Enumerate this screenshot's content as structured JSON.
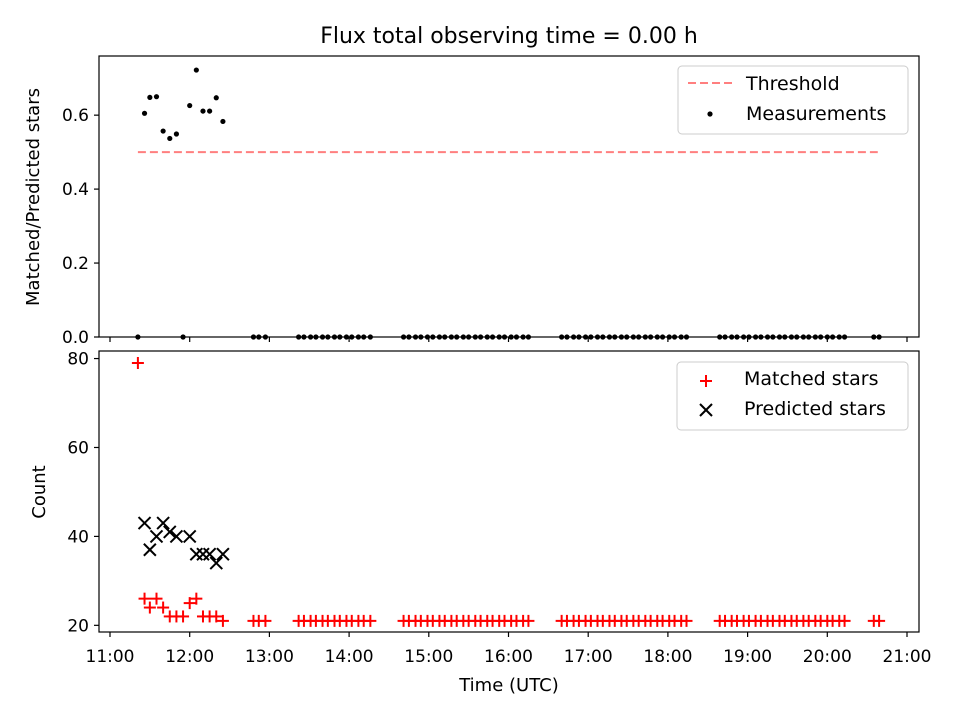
{
  "chart_data": [
    {
      "type": "scatter",
      "title": "Flux total observing time = 0.00 h",
      "xlabel": "",
      "ylabel": "Matched/Predicted stars",
      "xlim": [
        "11:00",
        "21:00"
      ],
      "ylim": [
        0,
        0.76
      ],
      "xticks": [
        "11:00",
        "12:00",
        "13:00",
        "14:00",
        "15:00",
        "16:00",
        "17:00",
        "18:00",
        "19:00",
        "20:00",
        "21:00"
      ],
      "yticks": [
        "0.0",
        "0.2",
        "0.4",
        "0.6"
      ],
      "legend_position": "top-right",
      "threshold": {
        "name": "Threshold",
        "value": 0.5,
        "x_start": "11:21",
        "x_end": "20:38",
        "color": "#ff7f7f",
        "style": "dashed"
      },
      "series": [
        {
          "name": "Measurements",
          "marker": "dot",
          "color": "#000000",
          "x": [
            "11:21",
            "11:26",
            "11:30",
            "11:35",
            "11:40",
            "11:45",
            "11:50",
            "11:55",
            "12:00",
            "12:05",
            "12:10",
            "12:15",
            "12:20",
            "12:25",
            "12:48",
            "12:52",
            "12:57",
            "13:22",
            "13:26",
            "13:31",
            "13:35",
            "13:40",
            "13:44",
            "13:49",
            "13:53",
            "13:58",
            "14:02",
            "14:07",
            "14:11",
            "14:16",
            "14:41",
            "14:45",
            "14:50",
            "14:54",
            "14:59",
            "15:03",
            "15:08",
            "15:12",
            "15:17",
            "15:21",
            "15:26",
            "15:30",
            "15:35",
            "15:39",
            "15:44",
            "15:48",
            "15:53",
            "15:57",
            "16:02",
            "16:06",
            "16:11",
            "16:15",
            "16:40",
            "16:44",
            "16:49",
            "16:53",
            "16:58",
            "17:02",
            "17:07",
            "17:11",
            "17:16",
            "17:20",
            "17:25",
            "17:29",
            "17:34",
            "17:38",
            "17:43",
            "17:47",
            "17:52",
            "17:56",
            "18:01",
            "18:05",
            "18:10",
            "18:14",
            "18:39",
            "18:43",
            "18:48",
            "18:52",
            "18:57",
            "19:01",
            "19:06",
            "19:10",
            "19:15",
            "19:19",
            "19:24",
            "19:28",
            "19:33",
            "19:37",
            "19:42",
            "19:46",
            "19:51",
            "19:55",
            "20:00",
            "20:04",
            "20:09",
            "20:13",
            "20:35",
            "20:39"
          ],
          "y": [
            0,
            0.605,
            0.648,
            0.65,
            0.557,
            0.537,
            0.549,
            0,
            0.626,
            0.722,
            0.611,
            0.611,
            0.647,
            0.583,
            0,
            0,
            0,
            0,
            0,
            0,
            0,
            0,
            0,
            0,
            0,
            0,
            0,
            0,
            0,
            0,
            0,
            0,
            0,
            0,
            0,
            0,
            0,
            0,
            0,
            0,
            0,
            0,
            0,
            0,
            0,
            0,
            0,
            0,
            0,
            0,
            0,
            0,
            0,
            0,
            0,
            0,
            0,
            0,
            0,
            0,
            0,
            0,
            0,
            0,
            0,
            0,
            0,
            0,
            0,
            0,
            0,
            0,
            0,
            0,
            0,
            0,
            0,
            0,
            0,
            0,
            0,
            0,
            0,
            0,
            0,
            0,
            0,
            0,
            0,
            0,
            0,
            0,
            0,
            0,
            0,
            0,
            0,
            0
          ]
        }
      ]
    },
    {
      "type": "scatter",
      "title": "",
      "xlabel": "Time (UTC)",
      "ylabel": "Count",
      "xlim": [
        "11:00",
        "21:00"
      ],
      "ylim": [
        18.5,
        81.7
      ],
      "xticks": [
        "11:00",
        "12:00",
        "13:00",
        "14:00",
        "15:00",
        "16:00",
        "17:00",
        "18:00",
        "19:00",
        "20:00",
        "21:00"
      ],
      "yticks": [
        "20",
        "40",
        "60",
        "80"
      ],
      "legend_position": "top-right",
      "series": [
        {
          "name": "Matched stars",
          "marker": "plus",
          "color": "#ff0000",
          "x": [
            "11:21",
            "11:26",
            "11:30",
            "11:35",
            "11:40",
            "11:45",
            "11:50",
            "11:55",
            "12:00",
            "12:05",
            "12:10",
            "12:15",
            "12:20",
            "12:25",
            "12:48",
            "12:52",
            "12:57",
            "13:22",
            "13:26",
            "13:31",
            "13:35",
            "13:40",
            "13:44",
            "13:49",
            "13:53",
            "13:58",
            "14:02",
            "14:07",
            "14:11",
            "14:16",
            "14:41",
            "14:45",
            "14:50",
            "14:54",
            "14:59",
            "15:03",
            "15:08",
            "15:12",
            "15:17",
            "15:21",
            "15:26",
            "15:30",
            "15:35",
            "15:39",
            "15:44",
            "15:48",
            "15:53",
            "15:57",
            "16:02",
            "16:06",
            "16:11",
            "16:15",
            "16:40",
            "16:44",
            "16:49",
            "16:53",
            "16:58",
            "17:02",
            "17:07",
            "17:11",
            "17:16",
            "17:20",
            "17:25",
            "17:29",
            "17:34",
            "17:38",
            "17:43",
            "17:47",
            "17:52",
            "17:56",
            "18:01",
            "18:05",
            "18:10",
            "18:14",
            "18:39",
            "18:43",
            "18:48",
            "18:52",
            "18:57",
            "19:01",
            "19:06",
            "19:10",
            "19:15",
            "19:19",
            "19:24",
            "19:28",
            "19:33",
            "19:37",
            "19:42",
            "19:46",
            "19:51",
            "19:55",
            "20:00",
            "20:04",
            "20:09",
            "20:13",
            "20:35",
            "20:39"
          ],
          "y": [
            79,
            26,
            24,
            26,
            24,
            22,
            22,
            22,
            25,
            26,
            22,
            22,
            22,
            21,
            21,
            21,
            21,
            21,
            21,
            21,
            21,
            21,
            21,
            21,
            21,
            21,
            21,
            21,
            21,
            21,
            21,
            21,
            21,
            21,
            21,
            21,
            21,
            21,
            21,
            21,
            21,
            21,
            21,
            21,
            21,
            21,
            21,
            21,
            21,
            21,
            21,
            21,
            21,
            21,
            21,
            21,
            21,
            21,
            21,
            21,
            21,
            21,
            21,
            21,
            21,
            21,
            21,
            21,
            21,
            21,
            21,
            21,
            21,
            21,
            21,
            21,
            21,
            21,
            21,
            21,
            21,
            21,
            21,
            21,
            21,
            21,
            21,
            21,
            21,
            21,
            21,
            21,
            21,
            21,
            21,
            21,
            21,
            21
          ]
        },
        {
          "name": "Predicted stars",
          "marker": "x",
          "color": "#000000",
          "x": [
            "11:26",
            "11:30",
            "11:35",
            "11:40",
            "11:45",
            "11:50",
            "12:00",
            "12:05",
            "12:10",
            "12:15",
            "12:20",
            "12:25"
          ],
          "y": [
            43,
            37,
            40,
            43,
            41,
            40,
            40,
            36,
            36,
            36,
            34,
            36
          ]
        }
      ]
    }
  ]
}
